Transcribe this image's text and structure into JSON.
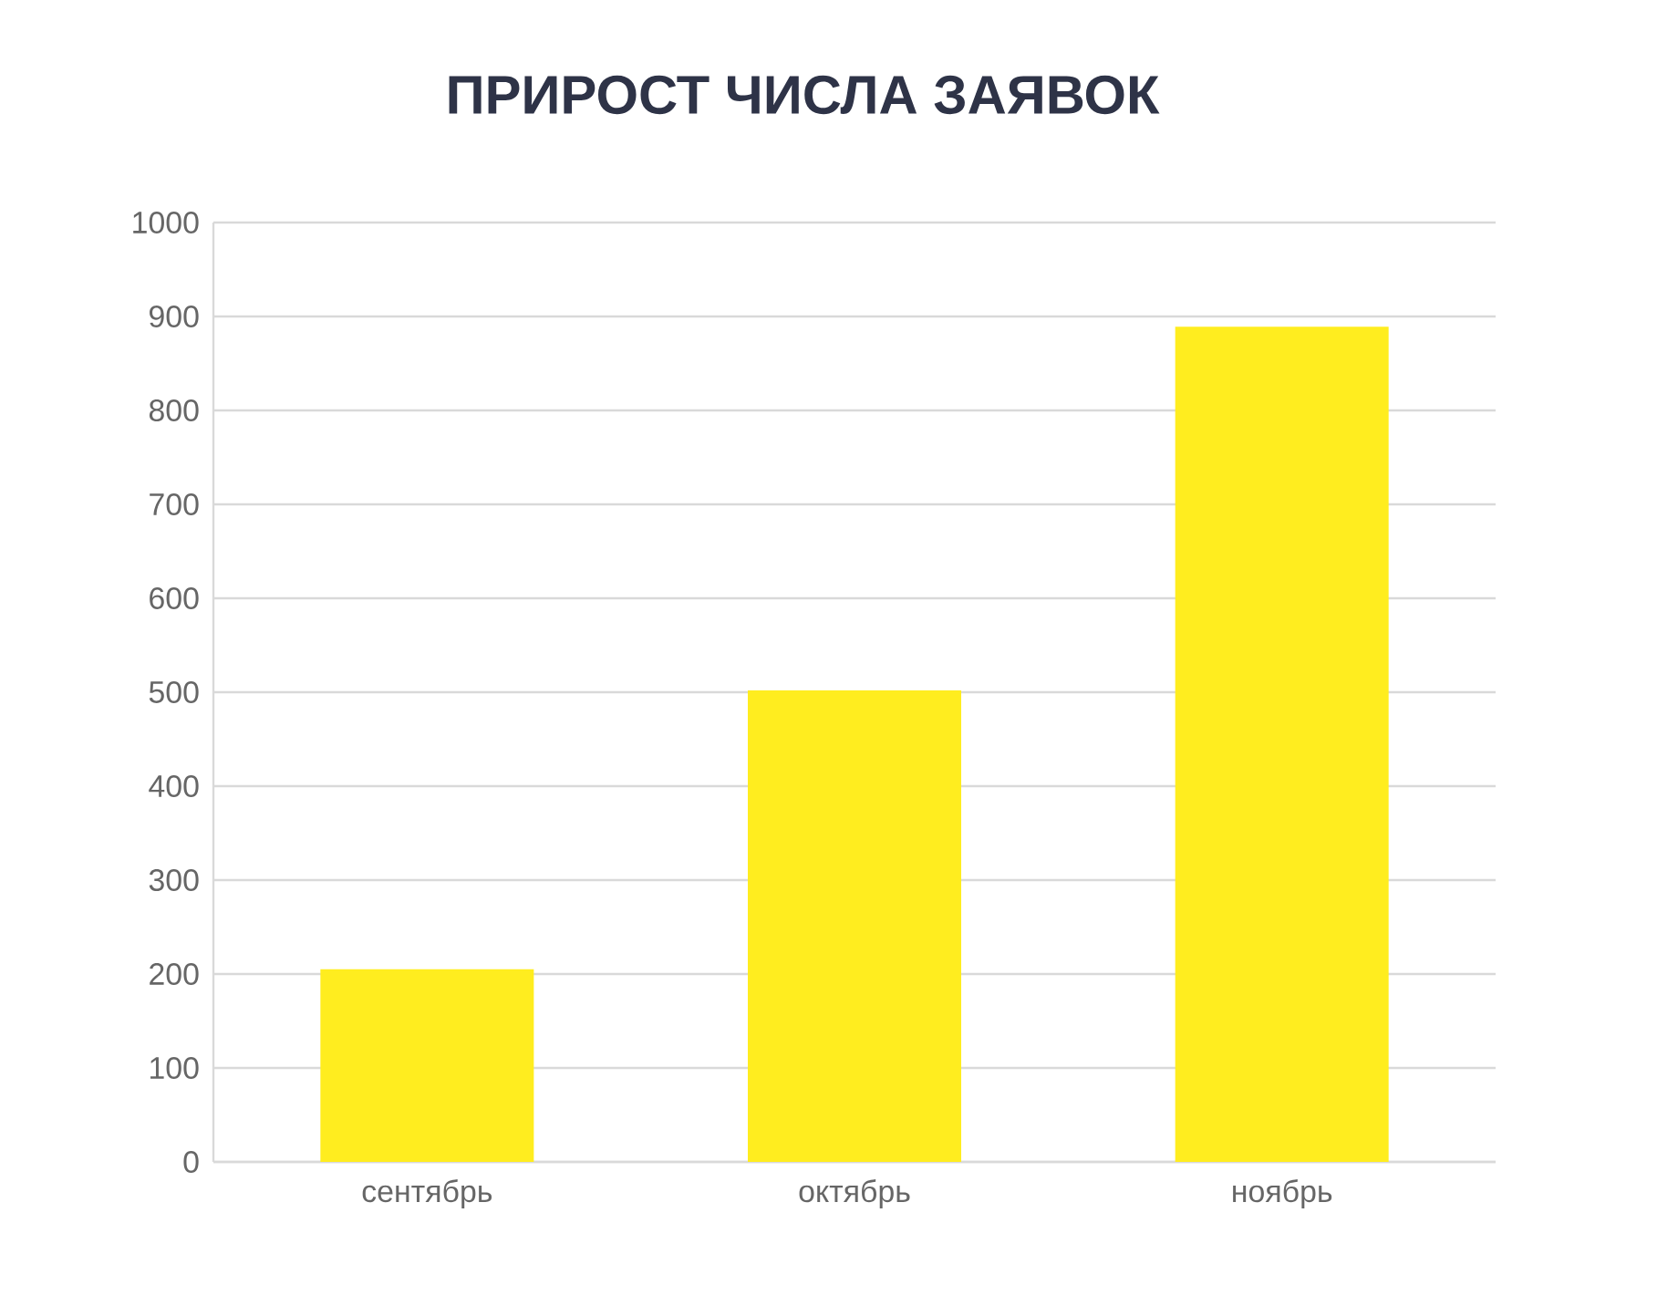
{
  "chart_data": {
    "type": "bar",
    "title": "ПРИРОСТ ЧИСЛА ЗАЯВОК",
    "categories": [
      "сентябрь",
      "октябрь",
      "ноябрь"
    ],
    "values": [
      205,
      502,
      889
    ],
    "color": "#ffed1f",
    "ylim": [
      0,
      1000
    ],
    "yticks": [
      0,
      100,
      200,
      300,
      400,
      500,
      600,
      700,
      800,
      900,
      1000
    ],
    "grid": "y"
  }
}
